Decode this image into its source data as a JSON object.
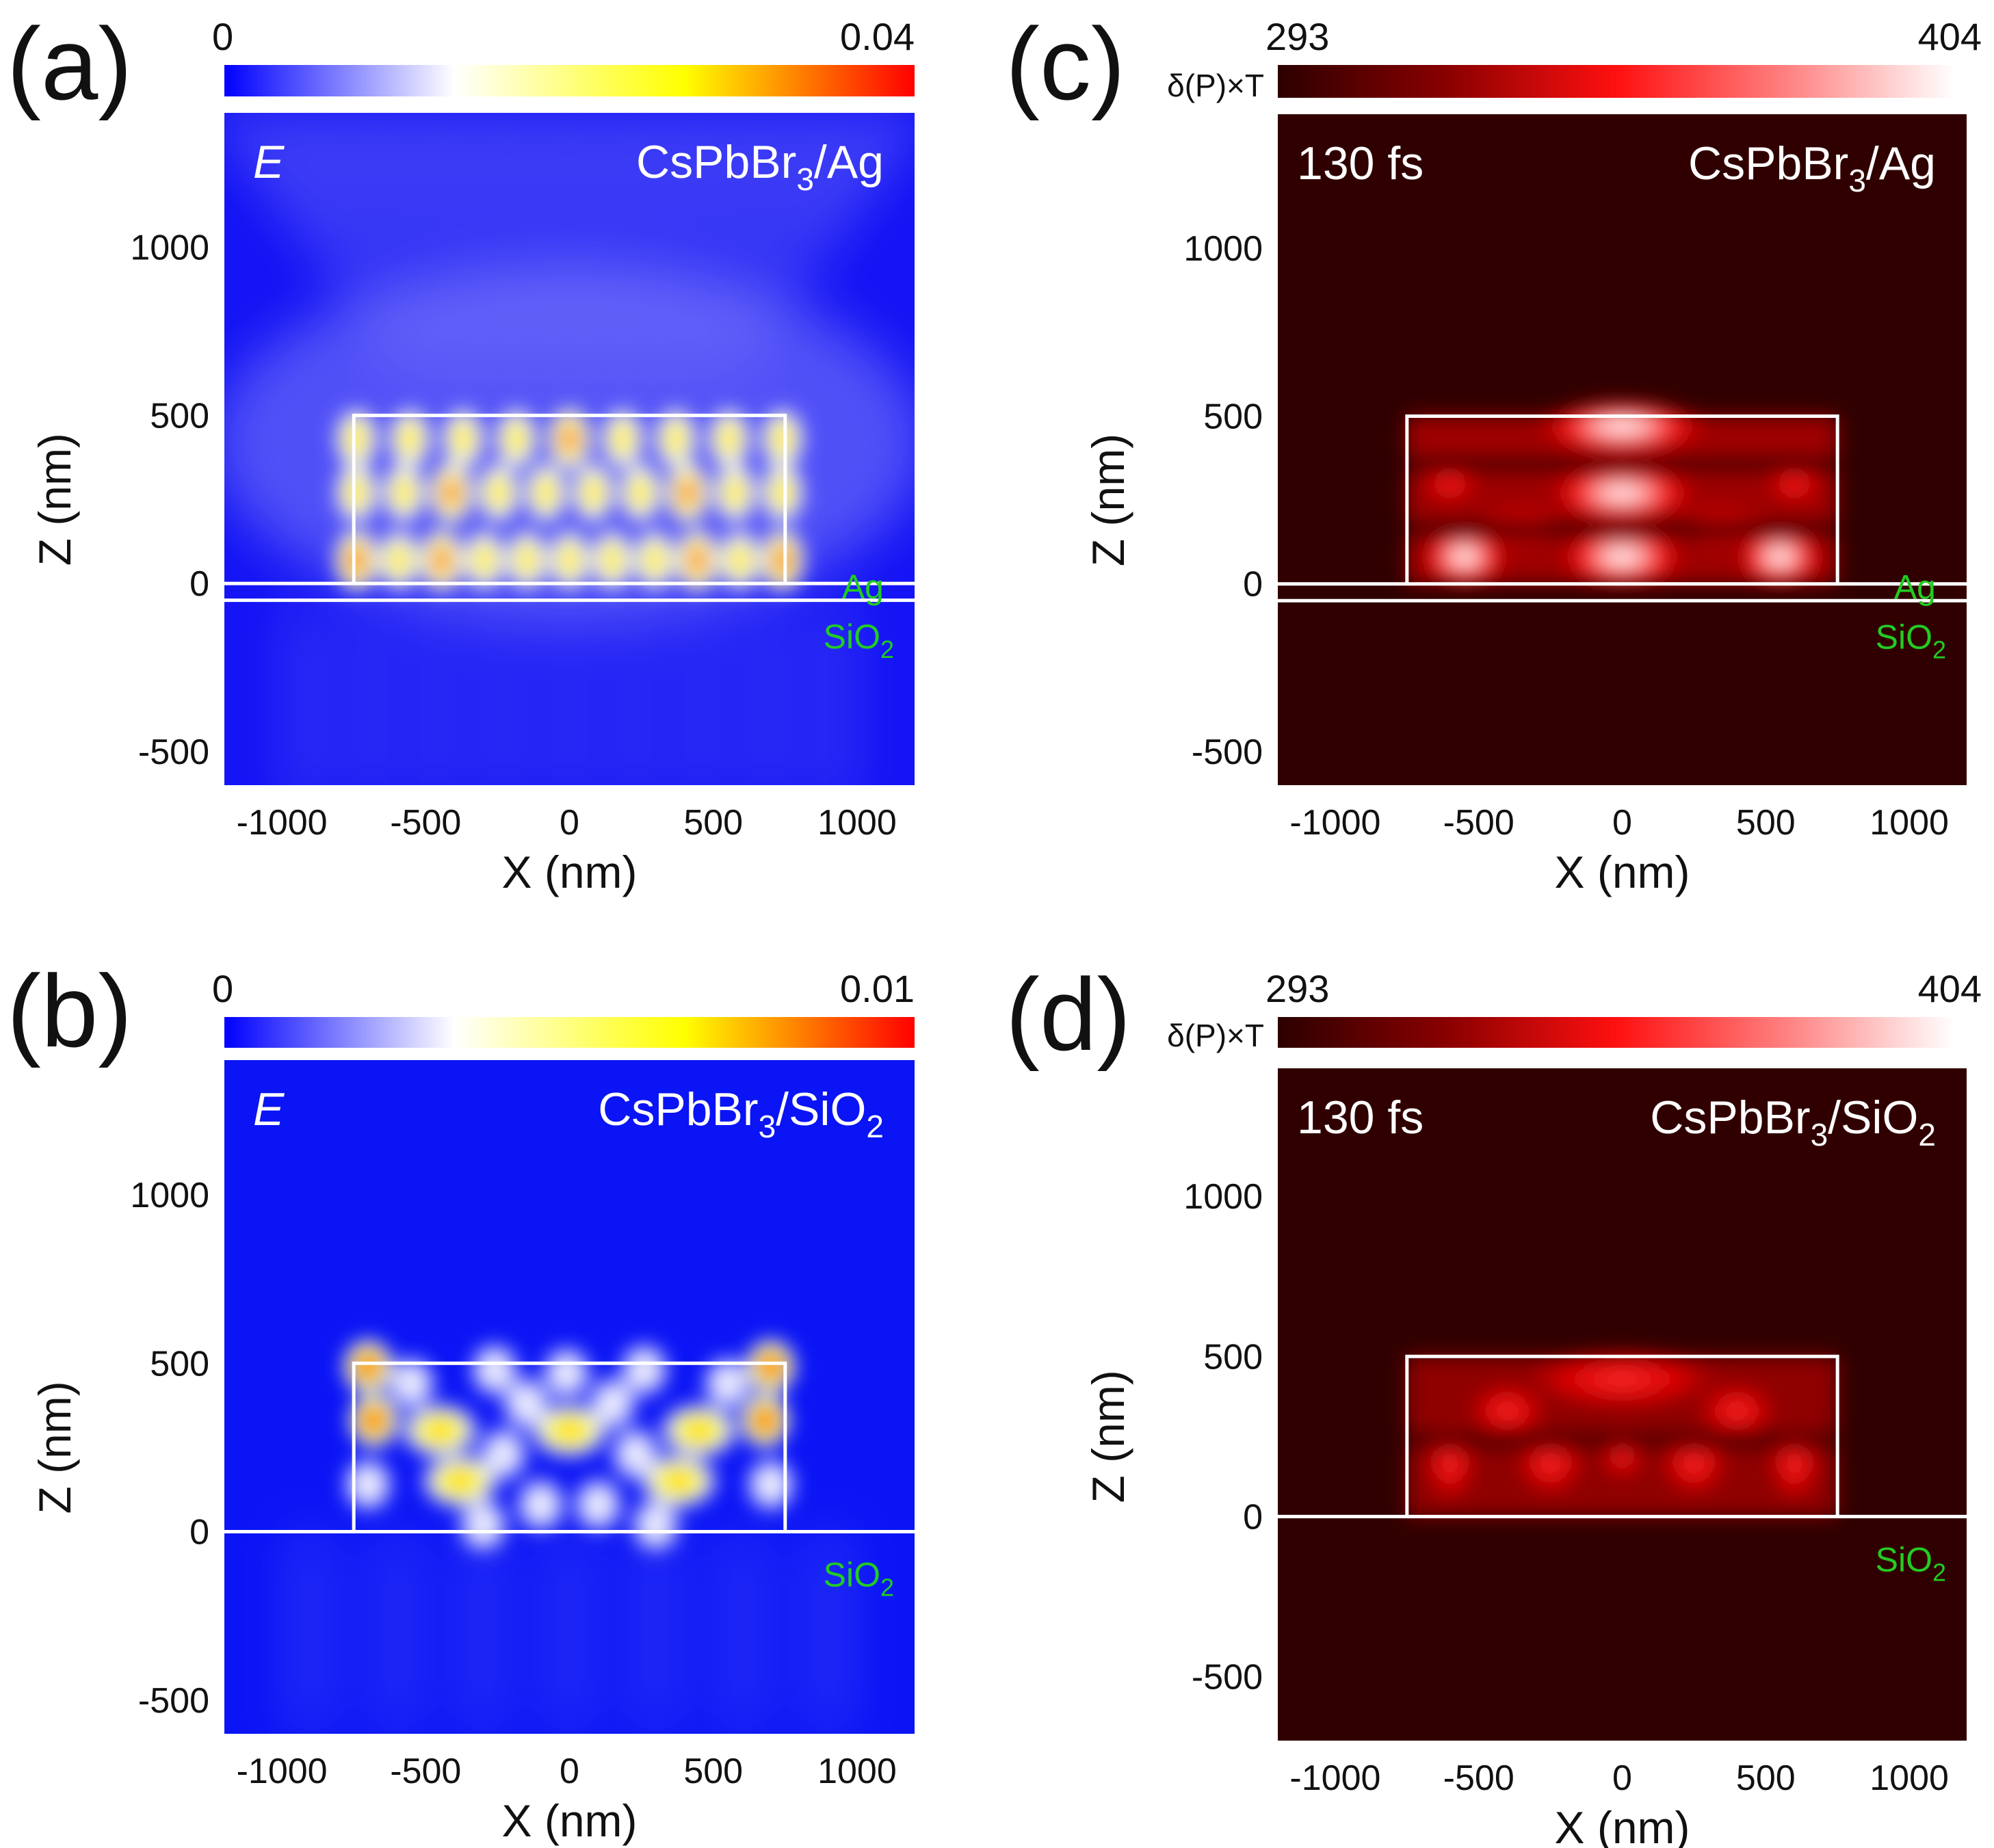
{
  "chart_data": [
    {
      "panel": "(a)",
      "type": "heatmap",
      "title_left": "E",
      "title_right_main": "CsPbBr",
      "title_right_sub": "3",
      "title_right_tail": "/Ag",
      "colorbar": {
        "min_label": "0",
        "max_label": "0.04",
        "label": "",
        "colors": [
          "#0000ff",
          "#ffffff",
          "#ffff00",
          "#ff0000"
        ]
      },
      "xlabel": "X (nm)",
      "ylabel": "Z (nm)",
      "xlim": [
        -1200,
        1200
      ],
      "ylim": [
        -600,
        1400
      ],
      "xticks": [
        -1000,
        -500,
        0,
        500,
        1000
      ],
      "xtick_labels": [
        "-1000",
        "-500",
        "0",
        "500",
        "1000"
      ],
      "yticks": [
        -500,
        0,
        500,
        1000
      ],
      "ytick_labels": [
        "-500",
        "0",
        "500",
        "1000"
      ],
      "substrate": "Ag",
      "substrate_2_main": "SiO",
      "substrate_2_sub": "2",
      "box": {
        "x0": -750,
        "x1": 750,
        "z0": 0,
        "z1": 500
      },
      "bg": "#1414f5",
      "time_label": ""
    },
    {
      "panel": "(b)",
      "type": "heatmap",
      "title_left": "E",
      "title_right_main": "CsPbBr",
      "title_right_sub": "3",
      "title_right_tail": "/SiO",
      "title_right_tail_sub": "2",
      "colorbar": {
        "min_label": "0",
        "max_label": "0.01",
        "label": "",
        "colors": [
          "#0000ff",
          "#ffffff",
          "#ffff00",
          "#ff0000"
        ]
      },
      "xlabel": "X (nm)",
      "ylabel": "Z (nm)",
      "xlim": [
        -1200,
        1200
      ],
      "ylim": [
        -600,
        1400
      ],
      "xticks": [
        -1000,
        -500,
        0,
        500,
        1000
      ],
      "xtick_labels": [
        "-1000",
        "-500",
        "0",
        "500",
        "1000"
      ],
      "yticks": [
        -500,
        0,
        500,
        1000
      ],
      "ytick_labels": [
        "-500",
        "0",
        "500",
        "1000"
      ],
      "substrate": "",
      "substrate_2_main": "SiO",
      "substrate_2_sub": "2",
      "box": {
        "x0": -750,
        "x1": 750,
        "z0": 0,
        "z1": 500
      },
      "bg": "#0a14f5",
      "time_label": ""
    },
    {
      "panel": "(c)",
      "type": "heatmap",
      "title_left": "",
      "title_right_main": "CsPbBr",
      "title_right_sub": "3",
      "title_right_tail": "/Ag",
      "colorbar": {
        "min_label": "293",
        "max_label": "404",
        "label": "δ(P)×T",
        "colors": [
          "#2d0000",
          "#8a0000",
          "#ff1010",
          "#ff8080",
          "#ffffff"
        ]
      },
      "xlabel": "X (nm)",
      "ylabel": "Z (nm)",
      "xlim": [
        -1200,
        1200
      ],
      "ylim": [
        -600,
        1400
      ],
      "xticks": [
        -1000,
        -500,
        0,
        500,
        1000
      ],
      "xtick_labels": [
        "-1000",
        "-500",
        "0",
        "500",
        "1000"
      ],
      "yticks": [
        -500,
        0,
        500,
        1000
      ],
      "ytick_labels": [
        "-500",
        "0",
        "500",
        "1000"
      ],
      "substrate": "Ag",
      "substrate_2_main": "SiO",
      "substrate_2_sub": "2",
      "box": {
        "x0": -750,
        "x1": 750,
        "z0": 0,
        "z1": 500
      },
      "bg": "#300000",
      "time_label": "130 fs"
    },
    {
      "panel": "(d)",
      "type": "heatmap",
      "title_left": "",
      "title_right_main": "CsPbBr",
      "title_right_sub": "3",
      "title_right_tail": "/SiO",
      "title_right_tail_sub": "2",
      "colorbar": {
        "min_label": "293",
        "max_label": "404",
        "label": "δ(P)×T",
        "colors": [
          "#2d0000",
          "#8a0000",
          "#ff1010",
          "#ff8080",
          "#ffffff"
        ]
      },
      "xlabel": "X (nm)",
      "ylabel": "Z (nm)",
      "xlim": [
        -1200,
        1200
      ],
      "ylim": [
        -700,
        1400
      ],
      "xticks": [
        -1000,
        -500,
        0,
        500,
        1000
      ],
      "xtick_labels": [
        "-1000",
        "-500",
        "0",
        "500",
        "1000"
      ],
      "yticks": [
        -500,
        0,
        500,
        1000
      ],
      "ytick_labels": [
        "-500",
        "0",
        "500",
        "1000"
      ],
      "substrate": "",
      "substrate_2_main": "SiO",
      "substrate_2_sub": "2",
      "box": {
        "x0": -750,
        "x1": 750,
        "z0": 0,
        "z1": 500
      },
      "bg": "#300000",
      "time_label": "130 fs"
    }
  ]
}
